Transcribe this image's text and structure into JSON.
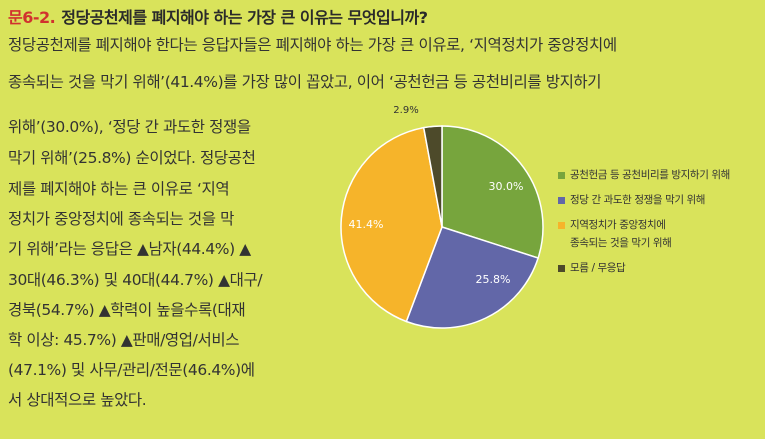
{
  "title": {
    "number": "문6-2.",
    "question": "정당공천제를 폐지해야 하는 가장 큰 이유는 무엇입니까?"
  },
  "body": {
    "full_lines": [
      "정당공천제를 폐지해야 한다는 응답자들은 폐지해야 하는 가장 큰 이유로, ‘지역정치가 중앙정치에",
      "종속되는 것을 막기 위해’(41.4%)를 가장 많이 꼽았고, 이어 ‘공천헌금 등 공천비리를 방지하기"
    ],
    "column_lines": [
      "위해’(30.0%), ‘정당 간 과도한 정쟁을",
      "막기 위해’(25.8%) 순이었다. 정당공천",
      "제를 폐지해야 하는 큰 이유로 ‘지역",
      "정치가 중앙정치에 종속되는 것을 막",
      "기 위해’라는 응답은 ▲남자(44.4%) ▲",
      "30대(46.3%) 및 40대(44.7%) ▲대구/",
      "경북(54.7%) ▲학력이 높을수록(대재",
      "학 이상: 45.7%) ▲판매/영업/서비스",
      "(47.1%) 및 사무/관리/전문(46.4%)에",
      "서 상대적으로 높았다."
    ]
  },
  "colors": {
    "green": "#77a53d",
    "blue": "#6267a8",
    "orange": "#f6b42a",
    "dark": "#4d4a2a"
  },
  "chart_data": {
    "type": "pie",
    "title": "",
    "start_angle_deg": 0,
    "direction": "clockwise",
    "slices": [
      {
        "name": "공천헌금 등 공천비리를 방지하기 위해",
        "value": 30.0,
        "label": "30.0%",
        "color": "#77a53d"
      },
      {
        "name": "정당 간 과도한 정쟁을 막기 위해",
        "value": 25.8,
        "label": "25.8%",
        "color": "#6267a8"
      },
      {
        "name": "지역정치가 중앙정치에\n종속되는 것을 막기 위해",
        "value": 41.4,
        "label": "41.4%",
        "color": "#f6b42a"
      },
      {
        "name": "모름 / 무응답",
        "value": 2.9,
        "label": "2.9%",
        "color": "#4d4a2a"
      }
    ],
    "legend_position": "right"
  }
}
